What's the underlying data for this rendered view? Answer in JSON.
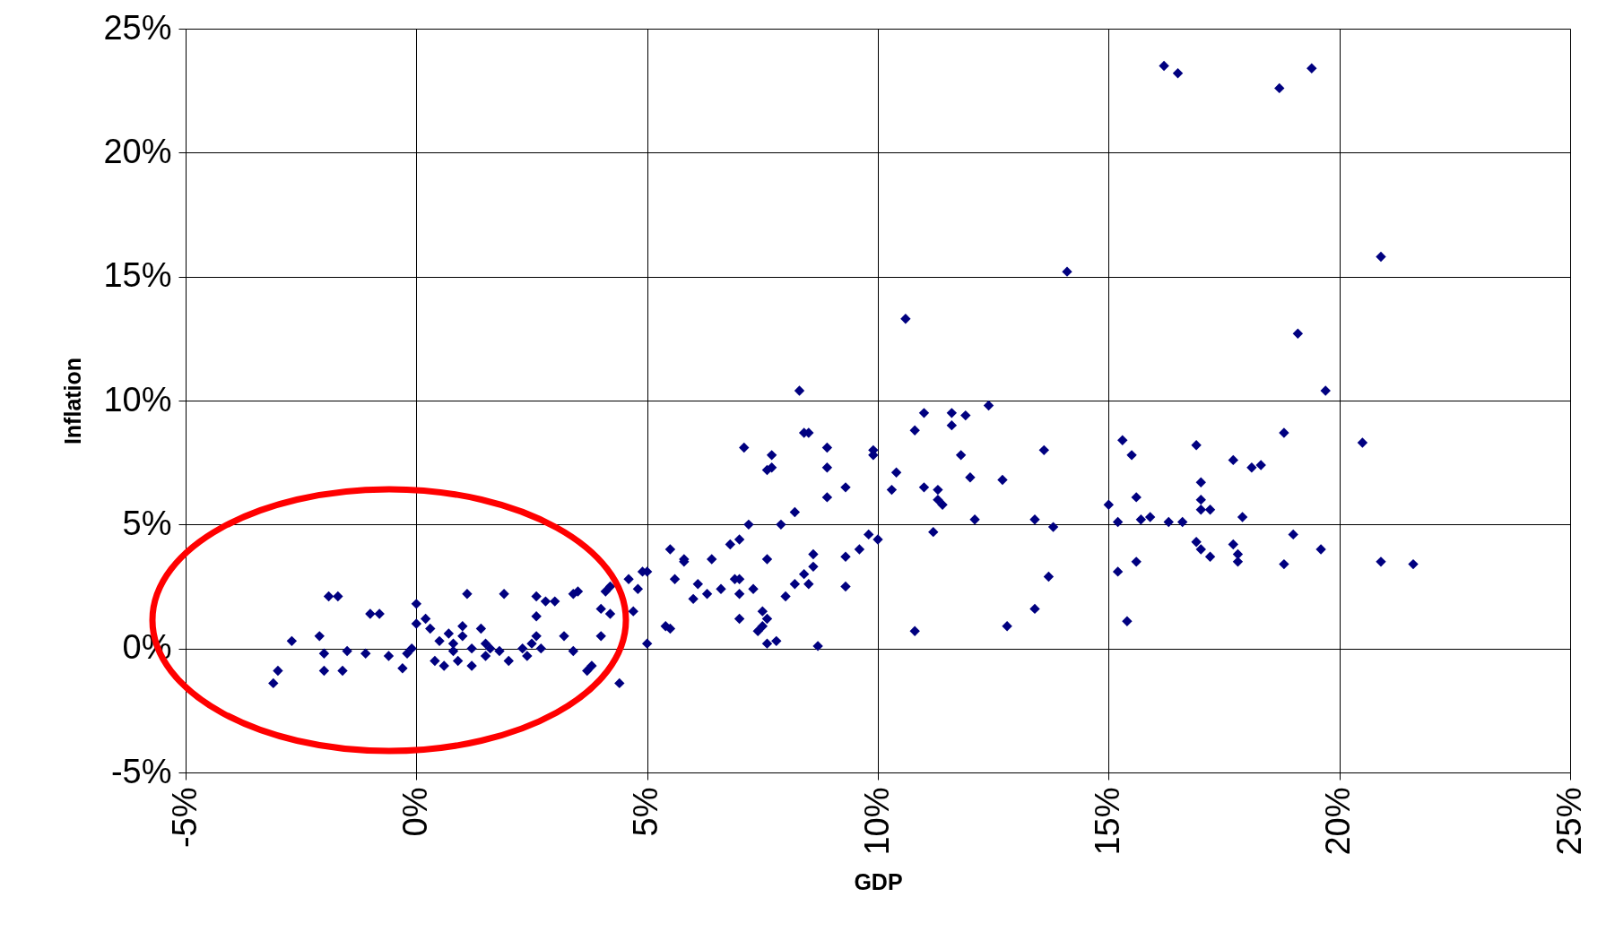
{
  "chart_data": {
    "type": "scatter",
    "xlabel": "GDP",
    "ylabel": "Inflation",
    "xlim": [
      -5,
      25
    ],
    "ylim": [
      -5,
      25
    ],
    "xticks": [
      {
        "value": -5,
        "label": "-5%"
      },
      {
        "value": 0,
        "label": "0%"
      },
      {
        "value": 5,
        "label": "5%"
      },
      {
        "value": 10,
        "label": "10%"
      },
      {
        "value": 15,
        "label": "15%"
      },
      {
        "value": 20,
        "label": "20%"
      },
      {
        "value": 25,
        "label": "25%"
      }
    ],
    "yticks": [
      {
        "value": -5,
        "label": "-5%"
      },
      {
        "value": 0,
        "label": "0%"
      },
      {
        "value": 5,
        "label": "5%"
      },
      {
        "value": 10,
        "label": "10%"
      },
      {
        "value": 15,
        "label": "15%"
      },
      {
        "value": 20,
        "label": "20%"
      },
      {
        "value": 25,
        "label": "25%"
      }
    ],
    "grid": true,
    "marker": "diamond",
    "series": [
      {
        "color": "#000080",
        "x": [
          -3.1,
          -3.0,
          -2.7,
          -2.1,
          -2.0,
          -2.0,
          -1.9,
          -1.7,
          -1.6,
          -1.5,
          -1.1,
          -1.0,
          -0.8,
          -0.6,
          -0.3,
          -0.2,
          0.0,
          0.0,
          0.2,
          0.3,
          -0.1,
          0.4,
          0.5,
          0.6,
          0.7,
          0.8,
          0.8,
          0.9,
          1.0,
          1.1,
          1.0,
          1.2,
          1.2,
          1.4,
          1.5,
          1.5,
          1.6,
          1.8,
          1.9,
          2.0,
          2.3,
          2.4,
          2.5,
          2.6,
          2.6,
          2.6,
          2.7,
          2.8,
          3.0,
          3.2,
          3.4,
          3.5,
          3.4,
          3.7,
          3.8,
          4.0,
          4.0,
          4.1,
          4.2,
          4.4,
          4.2,
          4.6,
          4.7,
          4.8,
          4.9,
          5.0,
          5.0,
          5.4,
          5.5,
          5.5,
          5.6,
          5.8,
          5.8,
          6.0,
          6.1,
          6.3,
          6.4,
          6.6,
          6.8,
          6.9,
          7.0,
          7.0,
          7.0,
          7.0,
          7.1,
          7.2,
          7.3,
          7.4,
          7.5,
          7.5,
          7.6,
          7.6,
          7.6,
          7.6,
          7.7,
          7.7,
          7.8,
          7.9,
          8.0,
          8.2,
          8.2,
          8.3,
          8.4,
          8.4,
          8.5,
          8.5,
          8.6,
          8.6,
          8.7,
          8.9,
          8.9,
          8.9,
          9.3,
          9.3,
          9.3,
          9.6,
          9.8,
          9.9,
          9.9,
          10.0,
          10.3,
          10.4,
          10.6,
          10.8,
          10.8,
          11.0,
          11.0,
          11.2,
          11.3,
          11.3,
          11.4,
          11.6,
          11.6,
          11.8,
          11.9,
          12.0,
          12.1,
          12.4,
          12.7,
          12.8,
          13.4,
          13.4,
          13.6,
          13.7,
          13.8,
          14.1,
          15.0,
          15.2,
          15.2,
          15.3,
          15.4,
          15.5,
          15.6,
          15.6,
          15.7,
          15.9,
          16.2,
          16.3,
          16.5,
          16.6,
          16.9,
          16.9,
          17.0,
          17.0,
          17.0,
          17.0,
          17.2,
          17.2,
          17.7,
          17.7,
          17.8,
          17.8,
          17.9,
          18.1,
          18.3,
          18.7,
          18.8,
          18.8,
          19.0,
          19.1,
          19.4,
          19.6,
          19.7,
          20.5,
          20.9,
          20.9,
          21.6
        ],
        "values": [
          -1.4,
          -0.9,
          0.3,
          0.5,
          -0.9,
          -0.2,
          2.1,
          2.1,
          -0.9,
          -0.1,
          -0.2,
          1.4,
          1.4,
          -0.3,
          -0.8,
          -0.2,
          1.8,
          1.0,
          1.2,
          0.8,
          0.0,
          -0.5,
          0.3,
          -0.7,
          0.6,
          -0.1,
          0.2,
          -0.5,
          0.9,
          2.2,
          0.5,
          -0.7,
          0.0,
          0.8,
          -0.3,
          0.2,
          0.0,
          -0.1,
          2.2,
          -0.5,
          0.0,
          -0.3,
          0.2,
          1.3,
          0.5,
          2.1,
          0.0,
          1.9,
          1.9,
          0.5,
          2.2,
          2.3,
          -0.1,
          -0.9,
          -0.7,
          1.6,
          0.5,
          2.3,
          1.4,
          -1.4,
          2.5,
          2.8,
          1.5,
          2.4,
          3.1,
          3.1,
          0.2,
          0.9,
          0.8,
          4.0,
          2.8,
          3.5,
          3.6,
          2.0,
          2.6,
          2.2,
          3.6,
          2.4,
          4.2,
          2.8,
          2.2,
          1.2,
          4.4,
          2.8,
          8.1,
          5.0,
          2.4,
          0.7,
          0.9,
          1.5,
          7.2,
          0.2,
          3.6,
          1.2,
          7.3,
          7.8,
          0.3,
          5.0,
          2.1,
          2.6,
          5.5,
          10.4,
          3.0,
          8.7,
          8.7,
          2.6,
          3.8,
          3.3,
          0.1,
          6.1,
          7.3,
          8.1,
          2.5,
          6.5,
          3.7,
          4.0,
          4.6,
          7.8,
          8.0,
          4.4,
          6.4,
          7.1,
          13.3,
          8.8,
          0.7,
          9.5,
          6.5,
          4.7,
          6.4,
          6.0,
          5.8,
          9.0,
          9.5,
          7.8,
          9.4,
          6.9,
          5.2,
          9.8,
          6.8,
          0.9,
          5.2,
          1.6,
          8.0,
          2.9,
          4.9,
          15.2,
          5.8,
          3.1,
          5.1,
          8.4,
          1.1,
          7.8,
          6.1,
          3.5,
          5.2,
          5.3,
          23.5,
          5.1,
          23.2,
          5.1,
          8.2,
          4.3,
          4.0,
          6.7,
          6.0,
          5.6,
          3.7,
          5.6,
          7.6,
          4.2,
          3.5,
          3.8,
          5.3,
          7.3,
          7.4,
          22.6,
          8.7,
          3.4,
          4.6,
          12.7,
          23.4,
          4.0,
          10.4,
          8.3,
          15.8,
          3.5,
          3.4
        ]
      }
    ]
  }
}
